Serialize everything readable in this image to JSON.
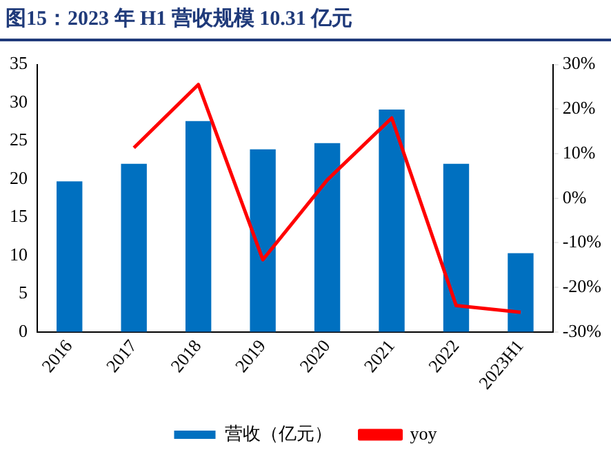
{
  "chart_data": {
    "type": "bar",
    "title": "图15：2023 年 H1 营收规模 10.31 亿元",
    "categories": [
      "2016",
      "2017",
      "2018",
      "2019",
      "2020",
      "2021",
      "2022",
      "2023H1"
    ],
    "series": [
      {
        "name": "营收（亿元）",
        "color": "#0070c0",
        "values": [
          19.7,
          22.0,
          27.6,
          23.9,
          24.7,
          29.1,
          22.0,
          10.3
        ]
      },
      {
        "name": "yoy",
        "type": "line",
        "axis": "y2",
        "color": "#ff0000",
        "values": [
          null,
          11.3,
          25.5,
          -13.8,
          4.1,
          18.0,
          -24.1,
          -25.6
        ]
      }
    ],
    "ylim": [
      0,
      35
    ],
    "yticks": [
      0,
      5,
      10,
      15,
      20,
      25,
      30,
      35
    ],
    "y2lim": [
      -30,
      30
    ],
    "y2ticks": [
      {
        "value": -30,
        "label": "-30%"
      },
      {
        "value": -20,
        "label": "-20%"
      },
      {
        "value": -10,
        "label": "-10%"
      },
      {
        "value": 0,
        "label": "0%"
      },
      {
        "value": 10,
        "label": "10%"
      },
      {
        "value": 20,
        "label": "20%"
      },
      {
        "value": 30,
        "label": "30%"
      }
    ],
    "grid": false,
    "legend": "bottom",
    "marker": "none"
  }
}
